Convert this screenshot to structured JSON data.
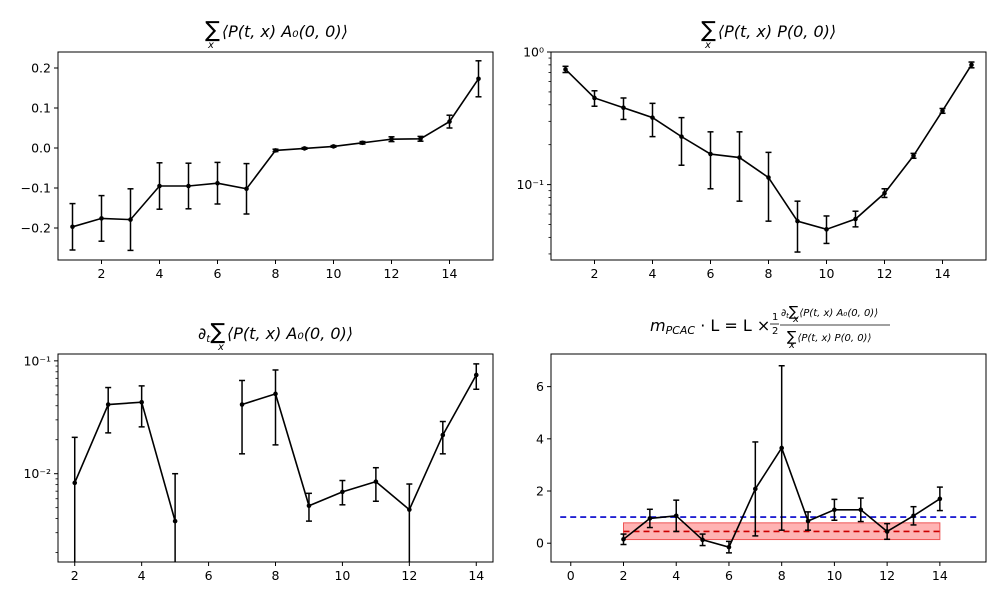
{
  "chart_data": [
    {
      "id": "c1",
      "type": "line",
      "title": "∑ₓ⟨P(t, x) A₀(0, 0)⟩",
      "title_parts": {
        "sum": "∑",
        "sub": "x",
        "body": "⟨P(t, x) A₀(0, 0)⟩"
      },
      "yscale": "linear",
      "xlim": [
        0.5,
        15.5
      ],
      "ylim": [
        -0.28,
        0.24
      ],
      "xticks": [
        2,
        4,
        6,
        8,
        10,
        12,
        14
      ],
      "yticks": [
        -0.2,
        -0.1,
        0.0,
        0.1,
        0.2
      ],
      "ytick_labels": [
        "−0.2",
        "−0.1",
        "0.0",
        "0.1",
        "0.2"
      ],
      "series": [
        {
          "x": [
            1,
            2,
            3,
            4,
            5,
            6,
            7,
            8,
            9,
            10,
            11,
            12,
            13,
            14,
            15
          ],
          "y": [
            -0.197,
            -0.176,
            -0.179,
            -0.095,
            -0.095,
            -0.088,
            -0.102,
            -0.006,
            -0.001,
            0.004,
            0.013,
            0.022,
            0.023,
            0.066,
            0.173
          ],
          "yerr": [
            0.058,
            0.057,
            0.077,
            0.058,
            0.057,
            0.052,
            0.063,
            0.003,
            0.002,
            0.002,
            0.003,
            0.006,
            0.006,
            0.016,
            0.045
          ]
        }
      ]
    },
    {
      "id": "c2",
      "type": "line",
      "title": "∑ₓ⟨P(t, x) P(0, 0)⟩",
      "title_parts": {
        "sum": "∑",
        "sub": "x",
        "body": "⟨P(t, x) P(0, 0)⟩"
      },
      "yscale": "log",
      "xlim": [
        0.5,
        15.5
      ],
      "ylim": [
        0.027,
        1.0
      ],
      "xticks": [
        2,
        4,
        6,
        8,
        10,
        12,
        14
      ],
      "yticks": [
        0.1,
        1.0
      ],
      "ytick_labels": [
        "10⁻¹",
        "10⁰"
      ],
      "series": [
        {
          "x": [
            1,
            2,
            3,
            4,
            5,
            6,
            7,
            8,
            9,
            10,
            11,
            12,
            13,
            14,
            15
          ],
          "y": [
            0.74,
            0.45,
            0.38,
            0.32,
            0.23,
            0.17,
            0.16,
            0.113,
            0.053,
            0.046,
            0.055,
            0.086,
            0.165,
            0.36,
            0.8
          ],
          "ylo": [
            0.7,
            0.39,
            0.31,
            0.23,
            0.14,
            0.093,
            0.075,
            0.053,
            0.031,
            0.036,
            0.048,
            0.08,
            0.158,
            0.345,
            0.76
          ],
          "yhi": [
            0.78,
            0.51,
            0.45,
            0.41,
            0.32,
            0.25,
            0.25,
            0.175,
            0.075,
            0.058,
            0.063,
            0.093,
            0.172,
            0.375,
            0.84
          ]
        }
      ]
    },
    {
      "id": "c3",
      "type": "line",
      "title": "∂ₜ∑ₓ⟨P(t, x) A₀(0, 0)⟩",
      "title_parts": {
        "pre": "∂",
        "pre_sub": "t",
        "sum": "∑",
        "sub": "x",
        "body": "⟨P(t, x) A₀(0, 0)⟩"
      },
      "yscale": "log",
      "xlim": [
        1.5,
        14.5
      ],
      "ylim": [
        0.00165,
        0.115
      ],
      "xticks": [
        2,
        4,
        6,
        8,
        10,
        12,
        14
      ],
      "yticks": [
        0.01,
        0.1
      ],
      "ytick_labels": [
        "10⁻²",
        "10⁻¹"
      ],
      "segments": [
        {
          "x": [
            2,
            3,
            4,
            5
          ],
          "y": [
            0.0083,
            0.041,
            0.043,
            0.0038
          ],
          "ylo": [
            0.0001,
            0.023,
            0.026,
            0.0001
          ],
          "yhi": [
            0.021,
            0.058,
            0.06,
            0.01
          ]
        },
        {
          "x": [
            7,
            8,
            9,
            10,
            11,
            12,
            13,
            14
          ],
          "y": [
            0.041,
            0.051,
            0.0052,
            0.0069,
            0.0085,
            0.0048,
            0.022,
            0.075
          ],
          "ylo": [
            0.015,
            0.018,
            0.0038,
            0.0053,
            0.0057,
            0.0015,
            0.015,
            0.056
          ],
          "yhi": [
            0.067,
            0.083,
            0.0067,
            0.0087,
            0.0113,
            0.0081,
            0.029,
            0.094
          ]
        }
      ],
      "orphan_errorbars": [
        {
          "x": 6,
          "ylo": 0.0001,
          "yhi": 0.0013
        }
      ]
    },
    {
      "id": "c4",
      "type": "line",
      "title": "m_PCAC · L = L × ½ · ∂ₜ∑ₓ⟨P(t, x) A₀(0, 0)⟩ / ∑ₓ⟨P(t, x) P(0, 0)⟩",
      "title_parts": {
        "lhs": "m",
        "lhs_sub": "PCAC",
        "mid": " · L = L × ",
        "half_num": "1",
        "half_den": "2",
        "num": "⟨P(t, x) A₀(0, 0)⟩",
        "den": "⟨P(t, x) P(0, 0)⟩",
        "num_pre": "∂",
        "num_pre_sub": "t",
        "sum": "∑",
        "sub": "x"
      },
      "yscale": "linear",
      "xlim": [
        -0.75,
        15.75
      ],
      "ylim": [
        -0.72,
        7.25
      ],
      "xticks": [
        0,
        2,
        4,
        6,
        8,
        10,
        12,
        14
      ],
      "yticks": [
        0,
        2,
        4,
        6
      ],
      "ytick_labels": [
        "0",
        "2",
        "4",
        "6"
      ],
      "series": [
        {
          "x": [
            2,
            3,
            4,
            5,
            6,
            7,
            8,
            9,
            10,
            11,
            12,
            13,
            14
          ],
          "y": [
            0.15,
            0.95,
            1.05,
            0.13,
            -0.15,
            2.08,
            3.65,
            0.85,
            1.28,
            1.28,
            0.45,
            1.05,
            1.7
          ],
          "yerr": [
            0.2,
            0.35,
            0.6,
            0.22,
            0.22,
            1.8,
            3.15,
            0.35,
            0.4,
            0.45,
            0.3,
            0.35,
            0.45
          ]
        }
      ],
      "hlines": [
        {
          "y": 1.0,
          "color": "#0000cc",
          "dash": "dashed"
        },
        {
          "y": 0.45,
          "color": "#cc0000",
          "dash": "dashed",
          "xmin": 2,
          "xmax": 14
        }
      ],
      "band": {
        "xmin": 2,
        "xmax": 14,
        "ylow": 0.14,
        "yhigh": 0.78,
        "color": "#ff9999"
      }
    }
  ]
}
